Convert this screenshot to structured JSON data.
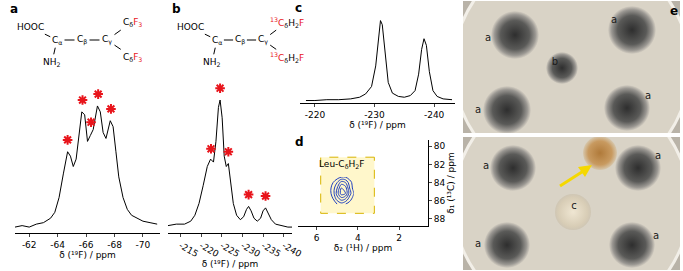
{
  "chart_data": [
    {
      "type": "line",
      "title": "a",
      "xlabel": "δ (¹⁹F) / ppm",
      "xlim": [
        -61,
        -71.2
      ],
      "xticks": [
        -62,
        -64,
        -66,
        -68,
        -70
      ],
      "ylim": [
        0,
        1.55
      ],
      "tick_labels": "x",
      "grid": false,
      "annotations": [
        [
          {
            "text": "HOOC"
          }
        ],
        [
          {
            "text": "C"
          },
          {
            "text": "α",
            "sub": true
          }
        ],
        [
          {
            "text": "C"
          },
          {
            "text": "β",
            "sub": true
          }
        ],
        [
          {
            "text": "C"
          },
          {
            "text": "γ",
            "sub": true
          }
        ],
        [
          {
            "text": "C"
          },
          {
            "text": "δ",
            "sub": true
          },
          {
            "text": "F",
            "color": "#e8141b"
          },
          {
            "text": "3",
            "sub": true,
            "color": "#e8141b"
          }
        ],
        [
          {
            "text": "C"
          },
          {
            "text": "δ",
            "sub": true
          },
          {
            "text": "F",
            "color": "#e8141b"
          },
          {
            "text": "3",
            "sub": true,
            "color": "#e8141b"
          }
        ],
        [
          {
            "text": "NH"
          },
          {
            "text": "2",
            "sub": true
          }
        ]
      ],
      "series": [
        {
          "type": "line",
          "color": "#000000",
          "x": [
            -61.0,
            -61.5,
            -62.0,
            -62.5,
            -63.0,
            -63.5,
            -63.8,
            -64.1,
            -64.4,
            -64.7,
            -64.9,
            -65.1,
            -65.3,
            -65.5,
            -65.7,
            -65.9,
            -66.1,
            -66.3,
            -66.5,
            -66.8,
            -67.0,
            -67.2,
            -67.4,
            -67.7,
            -67.9,
            -68.1,
            -68.3,
            -68.6,
            -68.9,
            -69.2,
            -69.6,
            -70.0,
            -70.5,
            -71.0
          ],
          "values": [
            0.04,
            0.05,
            0.04,
            0.06,
            0.07,
            0.1,
            0.14,
            0.24,
            0.4,
            0.55,
            0.52,
            0.45,
            0.5,
            0.68,
            0.82,
            0.8,
            0.62,
            0.66,
            0.7,
            0.86,
            0.82,
            0.68,
            0.64,
            0.76,
            0.72,
            0.55,
            0.38,
            0.24,
            0.16,
            0.12,
            0.1,
            0.08,
            0.07,
            0.06
          ]
        },
        {
          "type": "scatter",
          "marker": "asterisk",
          "color": "#e8141b",
          "x": [
            -64.7,
            -65.75,
            -66.35,
            -66.85,
            -67.75
          ],
          "values": [
            0.63,
            0.9,
            0.75,
            0.94,
            0.84
          ]
        }
      ]
    },
    {
      "type": "line",
      "title": "b",
      "xlabel": "δ (¹⁹F) / ppm",
      "xlim": [
        -212,
        -242
      ],
      "xticks": [
        -215,
        -220,
        -225,
        -230,
        -235,
        -240
      ],
      "ylim": [
        0,
        1.55
      ],
      "tick_labels": "x",
      "grid": false,
      "annotations": [
        [
          {
            "text": "HOOC"
          }
        ],
        [
          {
            "text": "C"
          },
          {
            "text": "α",
            "sub": true
          }
        ],
        [
          {
            "text": "C"
          },
          {
            "text": "β",
            "sub": true
          }
        ],
        [
          {
            "text": "C"
          },
          {
            "text": "γ",
            "sub": true
          }
        ],
        [
          {
            "text": "13",
            "sup": true,
            "color": "#e8141b"
          },
          {
            "text": "C",
            "color": "#e8141b"
          },
          {
            "text": "δ",
            "sub": true
          },
          {
            "text": "H"
          },
          {
            "text": "2",
            "sub": true
          },
          {
            "text": "F",
            "color": "#e8141b"
          }
        ],
        [
          {
            "text": "13",
            "sup": true,
            "color": "#e8141b"
          },
          {
            "text": "C",
            "color": "#e8141b"
          },
          {
            "text": "δ",
            "sub": true
          },
          {
            "text": "H"
          },
          {
            "text": "2",
            "sub": true
          },
          {
            "text": "F",
            "color": "#e8141b"
          }
        ],
        [
          {
            "text": "NH"
          },
          {
            "text": "2",
            "sub": true
          }
        ]
      ],
      "series": [
        {
          "type": "line",
          "color": "#000000",
          "x": [
            -212,
            -214,
            -216,
            -217.5,
            -218.5,
            -219.5,
            -220.5,
            -221.5,
            -222.3,
            -223.0,
            -223.6,
            -224.2,
            -224.6,
            -225.1,
            -225.6,
            -226.1,
            -226.6,
            -227.1,
            -227.8,
            -228.6,
            -229.5,
            -230.3,
            -231.0,
            -231.5,
            -232.1,
            -232.8,
            -233.6,
            -234.4,
            -235.0,
            -235.6,
            -236.2,
            -237.0,
            -238,
            -239.5,
            -241,
            -242
          ],
          "values": [
            0.05,
            0.06,
            0.06,
            0.08,
            0.12,
            0.2,
            0.32,
            0.45,
            0.5,
            0.48,
            0.62,
            0.85,
            0.9,
            0.78,
            0.52,
            0.45,
            0.47,
            0.36,
            0.2,
            0.12,
            0.09,
            0.11,
            0.16,
            0.18,
            0.15,
            0.1,
            0.08,
            0.1,
            0.15,
            0.17,
            0.14,
            0.09,
            0.06,
            0.05,
            0.04,
            0.04
          ]
        },
        {
          "type": "scatter",
          "marker": "asterisk",
          "color": "#e8141b",
          "x": [
            -222.4,
            -224.6,
            -226.6,
            -231.5,
            -235.6
          ],
          "values": [
            0.57,
            0.98,
            0.55,
            0.26,
            0.25
          ]
        }
      ]
    },
    {
      "type": "line",
      "title": "c",
      "xlabel": "δ (¹⁹F) / ppm",
      "xlim": [
        -217.5,
        -243.5
      ],
      "xticks": [
        -220,
        -230,
        -240
      ],
      "ylim": [
        0,
        1.08
      ],
      "tick_labels": "x",
      "grid": false,
      "series": [
        {
          "type": "line",
          "color": "#000000",
          "x": [
            -218.5,
            -220,
            -222,
            -224,
            -226,
            -227.5,
            -228.5,
            -229.5,
            -230.2,
            -230.7,
            -231.0,
            -231.3,
            -231.8,
            -232.3,
            -233,
            -234,
            -235,
            -236,
            -236.8,
            -237.4,
            -237.9,
            -238.3,
            -238.7,
            -239.2,
            -239.8,
            -240.5,
            -241.5,
            -243
          ],
          "values": [
            0.03,
            0.03,
            0.04,
            0.04,
            0.05,
            0.07,
            0.11,
            0.2,
            0.45,
            0.85,
            1.0,
            0.95,
            0.55,
            0.25,
            0.12,
            0.08,
            0.07,
            0.09,
            0.15,
            0.35,
            0.65,
            0.78,
            0.7,
            0.38,
            0.15,
            0.08,
            0.05,
            0.04
          ]
        }
      ]
    },
    {
      "type": "contour",
      "title": "d",
      "xlabel": "δ₂ (¹H) / ppm",
      "ylabel": "δ₁ (¹³C) / ppm",
      "xlim": [
        6.9,
        0.6
      ],
      "xticks": [
        6,
        4,
        2
      ],
      "ylim": [
        88.8,
        79.3
      ],
      "yticks": [
        80,
        82,
        84,
        86,
        88
      ],
      "grid": false,
      "color": "#1f3fbf",
      "annotations": [
        [
          {
            "text": "Leu-C"
          },
          {
            "text": "δ",
            "sub": true
          },
          {
            "text": "H"
          },
          {
            "text": "2",
            "sub": true
          },
          {
            "text": "F"
          }
        ]
      ],
      "x": [
        4.2,
        4.4,
        4.6,
        4.8,
        5.0,
        5.2,
        5.4
      ],
      "y": [
        83.4,
        84.0,
        84.6,
        85.2,
        85.8,
        86.4
      ],
      "z": [
        [
          0,
          0,
          1,
          1,
          0,
          0,
          0
        ],
        [
          0,
          2,
          5,
          6,
          3,
          1,
          0
        ],
        [
          0,
          3,
          8,
          9,
          5,
          2,
          0
        ],
        [
          1,
          4,
          9,
          10,
          6,
          2,
          0
        ],
        [
          0,
          2,
          5,
          6,
          4,
          1,
          0
        ],
        [
          0,
          0,
          1,
          2,
          1,
          0,
          0
        ]
      ]
    }
  ],
  "photo_panel": {
    "title": "e",
    "photos": [
      {
        "labels": [
          "a",
          "a",
          "b",
          "a",
          "a"
        ]
      },
      {
        "labels": [
          "a",
          "a",
          "c",
          "a",
          "a"
        ]
      }
    ]
  }
}
